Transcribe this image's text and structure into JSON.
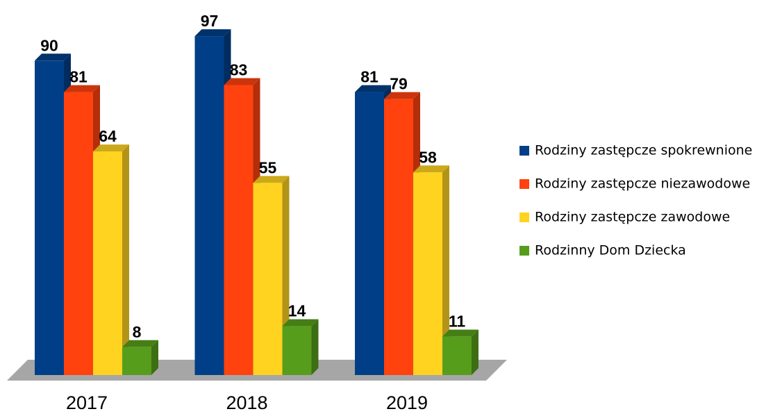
{
  "chart_data": {
    "type": "bar",
    "categories": [
      "2017",
      "2018",
      "2019"
    ],
    "series": [
      {
        "name": "Rodziny zastępcze spokrewnione",
        "color": "#003f87",
        "values": [
          90,
          97,
          81
        ]
      },
      {
        "name": "Rodziny zastępcze niezawodowe",
        "color": "#ff420e",
        "values": [
          81,
          83,
          79
        ]
      },
      {
        "name": "Rodziny zastępcze zawodowe",
        "color": "#ffd320",
        "values": [
          64,
          55,
          58
        ]
      },
      {
        "name": "Rodzinny Dom Dziecka",
        "color": "#579d1c",
        "values": [
          8,
          14,
          11
        ]
      }
    ],
    "ylim": [
      0,
      100
    ]
  }
}
